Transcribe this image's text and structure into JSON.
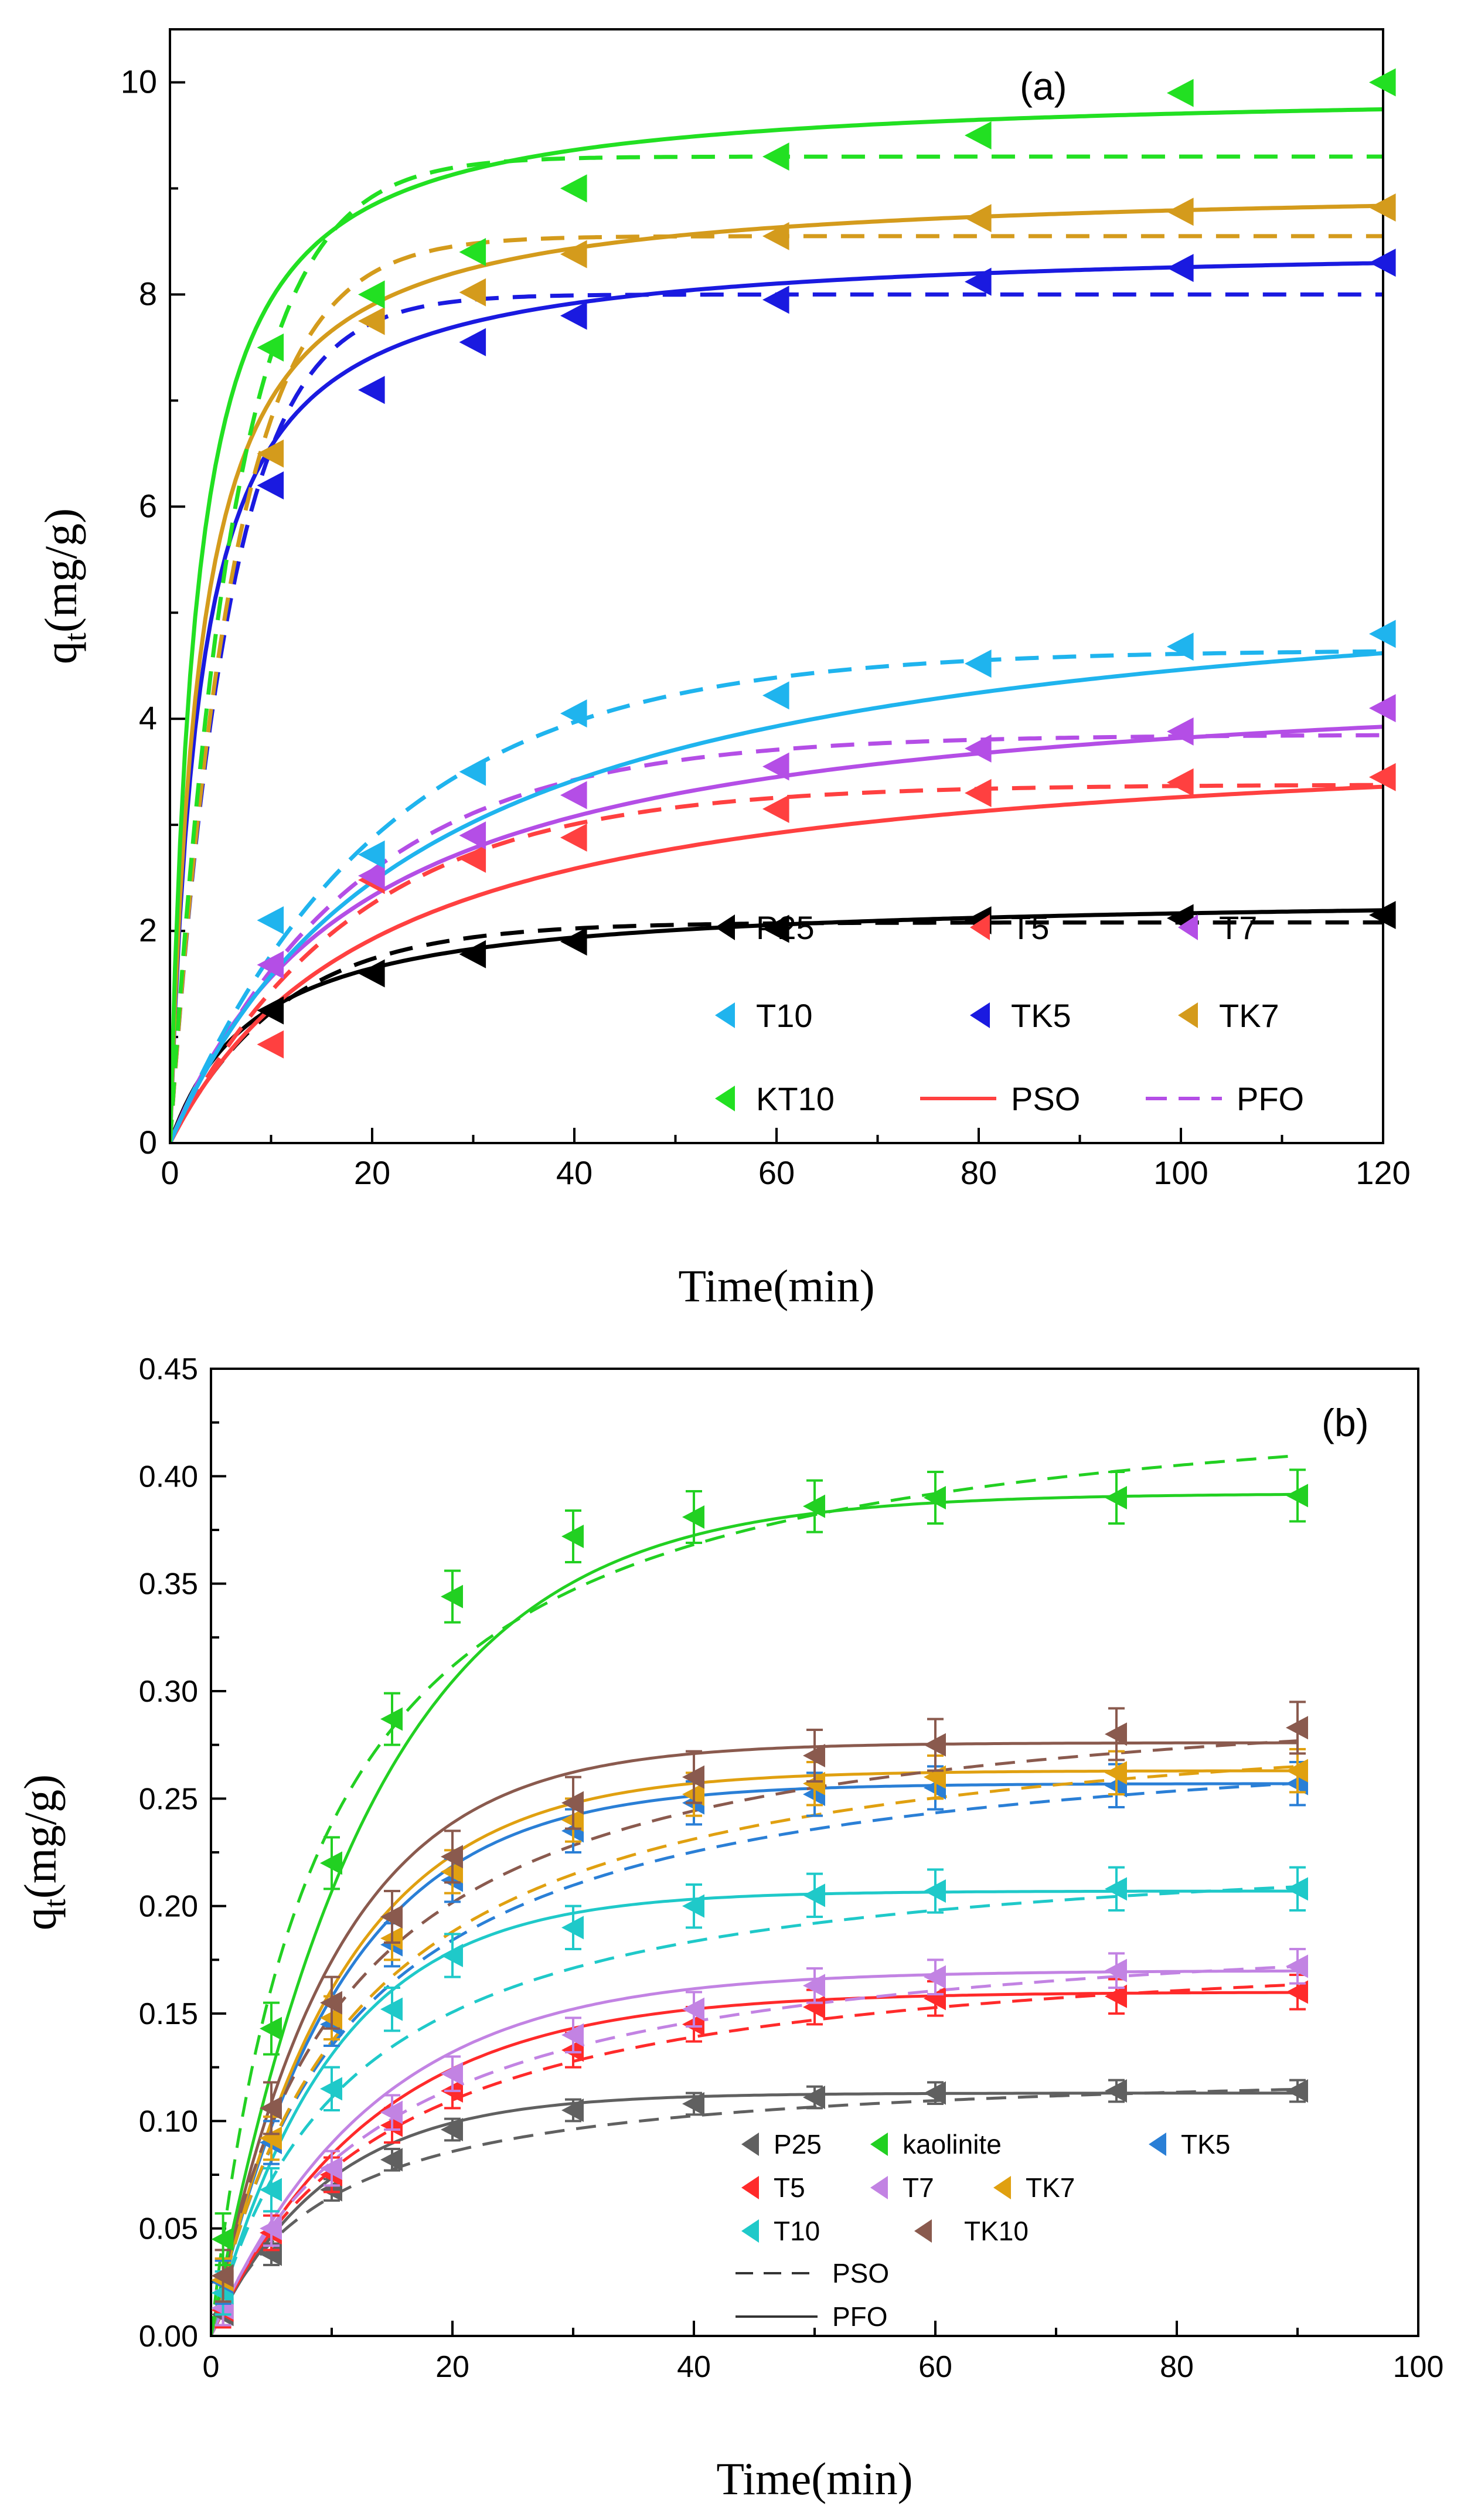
{
  "chart_data": [
    {
      "type": "scatter",
      "panel_label": "(a)",
      "xlabel": "Time(min)",
      "ylabel": {
        "base": "q",
        "sub": "t",
        "rest": "(mg/g)"
      },
      "xlim": [
        0,
        120
      ],
      "ylim": [
        0,
        10.5
      ],
      "xticks": [
        0,
        20,
        40,
        60,
        80,
        100,
        120
      ],
      "yticks": [
        0,
        2,
        4,
        6,
        8,
        10
      ],
      "x": [
        0,
        10,
        20,
        30,
        40,
        60,
        80,
        100,
        120
      ],
      "series": [
        {
          "name": "P25",
          "color": "#000000",
          "values": [
            0,
            1.25,
            1.6,
            1.78,
            1.9,
            2.02,
            2.1,
            2.12,
            2.15
          ],
          "pso": {
            "qe": 2.35,
            "k": 0.05
          },
          "pfo": {
            "qe": 2.08,
            "k": 0.09
          }
        },
        {
          "name": "T5",
          "color": "#ff4040",
          "values": [
            0,
            0.93,
            2.48,
            2.68,
            2.88,
            3.15,
            3.3,
            3.4,
            3.45
          ],
          "pso": {
            "qe": 3.95,
            "k": 0.012
          },
          "pfo": {
            "qe": 3.38,
            "k": 0.055
          }
        },
        {
          "name": "T7",
          "color": "#b44ee6",
          "values": [
            0,
            1.68,
            2.52,
            2.9,
            3.28,
            3.55,
            3.72,
            3.88,
            4.1
          ],
          "pso": {
            "qe": 4.55,
            "k": 0.0115
          },
          "pfo": {
            "qe": 3.85,
            "k": 0.055
          }
        },
        {
          "name": "T10",
          "color": "#1fb4ee",
          "values": [
            0,
            2.1,
            2.72,
            3.5,
            4.05,
            4.22,
            4.52,
            4.68,
            4.8
          ],
          "pso": {
            "qe": 5.6,
            "k": 0.007
          },
          "pfo": {
            "qe": 4.65,
            "k": 0.048
          }
        },
        {
          "name": "TK5",
          "color": "#1a1ae0",
          "values": [
            0,
            6.2,
            7.1,
            7.55,
            7.8,
            7.95,
            8.12,
            8.25,
            8.3
          ],
          "pso": {
            "qe": 8.5,
            "k": 0.04
          },
          "pfo": {
            "qe": 8.0,
            "k": 0.17
          }
        },
        {
          "name": "TK7",
          "color": "#d49b1c",
          "values": [
            0,
            6.5,
            7.75,
            8.02,
            8.38,
            8.55,
            8.72,
            8.78,
            8.82
          ],
          "pso": {
            "qe": 9.05,
            "k": 0.038
          },
          "pfo": {
            "qe": 8.55,
            "k": 0.16
          }
        },
        {
          "name": "KT10",
          "color": "#22e022",
          "values": [
            0,
            7.5,
            8.0,
            8.4,
            9.0,
            9.3,
            9.5,
            9.9,
            10.0
          ],
          "pso": {
            "qe": 9.95,
            "k": 0.04
          },
          "pfo": {
            "qe": 9.3,
            "k": 0.16
          }
        }
      ],
      "legend": {
        "items": [
          "P25",
          "T5",
          "T7",
          "T10",
          "TK5",
          "TK7",
          "KT10"
        ],
        "pso_label": "PSO",
        "pfo_label": "PFO"
      }
    },
    {
      "type": "scatter",
      "panel_label": "(b)",
      "xlabel": "Time(min)",
      "ylabel": {
        "base": "q",
        "sub": "t",
        "rest": "(mg/g)"
      },
      "xlim": [
        0,
        100
      ],
      "ylim": [
        0,
        0.45
      ],
      "xticks": [
        0,
        20,
        40,
        60,
        80,
        100
      ],
      "yticks": [
        "0.00",
        "0.05",
        "0.10",
        "0.15",
        "0.20",
        "0.25",
        "0.30",
        "0.35",
        "0.40",
        "0.45"
      ],
      "x": [
        0,
        1,
        5,
        10,
        15,
        20,
        30,
        40,
        50,
        60,
        75,
        90
      ],
      "series": [
        {
          "name": "P25",
          "color": "#606060",
          "values": [
            0,
            0.01,
            0.038,
            0.068,
            0.082,
            0.096,
            0.105,
            0.108,
            0.111,
            0.113,
            0.114,
            0.114
          ],
          "err": 0.005,
          "pso": {
            "qe": 0.127,
            "k": 0.82
          },
          "pfo": {
            "qe": 0.113,
            "k": 0.105
          }
        },
        {
          "name": "T5",
          "color": "#ff2a2a",
          "values": [
            0,
            0.012,
            0.048,
            0.075,
            0.098,
            0.114,
            0.133,
            0.145,
            0.153,
            0.157,
            0.158,
            0.16
          ],
          "err": 0.008,
          "pso": {
            "qe": 0.19,
            "k": 0.36
          },
          "pfo": {
            "qe": 0.16,
            "k": 0.075
          }
        },
        {
          "name": "T7",
          "color": "#c283e3",
          "values": [
            0,
            0.013,
            0.05,
            0.078,
            0.104,
            0.122,
            0.14,
            0.152,
            0.163,
            0.167,
            0.17,
            0.172
          ],
          "err": 0.008,
          "pso": {
            "qe": 0.2,
            "k": 0.34
          },
          "pfo": {
            "qe": 0.17,
            "k": 0.075
          }
        },
        {
          "name": "T10",
          "color": "#1fc9c9",
          "values": [
            0,
            0.02,
            0.068,
            0.115,
            0.152,
            0.177,
            0.19,
            0.2,
            0.205,
            0.207,
            0.208,
            0.208
          ],
          "err": 0.01,
          "pso": {
            "qe": 0.235,
            "k": 0.38
          },
          "pfo": {
            "qe": 0.207,
            "k": 0.1
          }
        },
        {
          "name": "TK5",
          "color": "#2a7fd6",
          "values": [
            0,
            0.025,
            0.09,
            0.145,
            0.182,
            0.212,
            0.235,
            0.248,
            0.252,
            0.255,
            0.256,
            0.257
          ],
          "err": 0.01,
          "pso": {
            "qe": 0.29,
            "k": 0.3
          },
          "pfo": {
            "qe": 0.257,
            "k": 0.095
          }
        },
        {
          "name": "TK7",
          "color": "#e0a010",
          "values": [
            0,
            0.026,
            0.092,
            0.148,
            0.185,
            0.216,
            0.24,
            0.252,
            0.257,
            0.26,
            0.262,
            0.263
          ],
          "err": 0.01,
          "pso": {
            "qe": 0.3,
            "k": 0.28
          },
          "pfo": {
            "qe": 0.263,
            "k": 0.095
          }
        },
        {
          "name": "TK10",
          "color": "#8a5a4e",
          "values": [
            0,
            0.028,
            0.106,
            0.155,
            0.195,
            0.223,
            0.248,
            0.26,
            0.27,
            0.275,
            0.28,
            0.283
          ],
          "err": 0.012,
          "pso": {
            "qe": 0.31,
            "k": 0.3
          },
          "pfo": {
            "qe": 0.276,
            "k": 0.1
          }
        },
        {
          "name": "kaolinite",
          "color": "#22d022",
          "values": [
            0,
            0.045,
            0.143,
            0.22,
            0.287,
            0.344,
            0.372,
            0.381,
            0.386,
            0.39,
            0.39,
            0.391
          ],
          "err": 0.012,
          "pso": {
            "qe": 0.45,
            "k": 0.25
          },
          "pfo": {
            "qe": 0.392,
            "k": 0.075
          }
        }
      ],
      "legend": {
        "items": [
          "P25",
          "kaolinite",
          "TK5",
          "T5",
          "T7",
          "TK7",
          "T10",
          "TK10"
        ],
        "pso_label": "PSO",
        "pfo_label": "PFO"
      }
    }
  ]
}
